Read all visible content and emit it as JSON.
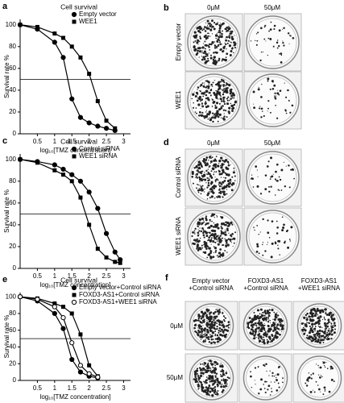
{
  "chart_data": [
    {
      "type": "line",
      "panel": "a",
      "title": "Cell survival",
      "x_label": "log₁₀[TMZ concentration]",
      "y_label": "Survival rate %",
      "x": [
        0,
        0.5,
        1,
        1.25,
        1.5,
        1.75,
        2,
        2.25,
        2.5,
        2.75
      ],
      "series": [
        {
          "name": "Empty vector",
          "color": "#000000",
          "marker": "circle",
          "values": [
            100,
            96,
            84,
            70,
            32,
            15,
            10,
            7,
            5,
            3
          ]
        },
        {
          "name": "WEE1",
          "color": "#000000",
          "marker": "square",
          "values": [
            100,
            98,
            92,
            88,
            80,
            70,
            55,
            30,
            12,
            5
          ]
        }
      ],
      "xlim": [
        0,
        3.2
      ],
      "xticks": [
        0.5,
        1,
        1.5,
        2,
        2.5,
        3
      ],
      "ylim": [
        0,
        105
      ],
      "yticks": [
        0,
        20,
        40,
        60,
        80,
        100
      ],
      "reference_line": 50,
      "grid": false
    },
    {
      "type": "line",
      "panel": "c",
      "title": "Cell survival",
      "x_label": "log₁₀[TMZ concentration]",
      "y_label": "Survival rate %",
      "x": [
        0,
        0.5,
        1,
        1.25,
        1.5,
        1.75,
        2,
        2.25,
        2.5,
        2.75,
        2.9
      ],
      "series": [
        {
          "name": "Control siRNA",
          "color": "#000000",
          "marker": "circle",
          "values": [
            100,
            98,
            95,
            91,
            86,
            80,
            70,
            55,
            32,
            15,
            8
          ]
        },
        {
          "name": "WEE1 siRNA",
          "color": "#000000",
          "marker": "square",
          "values": [
            100,
            97,
            90,
            86,
            80,
            65,
            40,
            18,
            10,
            6,
            5
          ]
        }
      ],
      "xlim": [
        0,
        3.2
      ],
      "xticks": [
        0.5,
        1,
        1.5,
        2,
        2.5,
        3
      ],
      "ylim": [
        0,
        105
      ],
      "yticks": [
        0,
        20,
        40,
        60,
        80,
        100
      ],
      "reference_line": 50,
      "grid": false
    },
    {
      "type": "line",
      "panel": "e",
      "title": "Cell survival",
      "x_label": "log₁₀[TMZ concentration]",
      "y_label": "Survival rate %",
      "x": [
        0,
        0.5,
        1,
        1.25,
        1.5,
        1.75,
        2,
        2.25
      ],
      "series": [
        {
          "name": "Empty vector+Control siRNA",
          "color": "#000000",
          "marker": "circle",
          "values": [
            100,
            95,
            80,
            62,
            25,
            10,
            5,
            3
          ]
        },
        {
          "name": "FOXD3-AS1+Control siRNA",
          "color": "#000000",
          "marker": "square",
          "values": [
            100,
            98,
            92,
            88,
            80,
            55,
            18,
            5
          ]
        },
        {
          "name": "FOXD3-AS1+WEE1 siRNA",
          "color": "#000000",
          "marker": "open-circle",
          "values": [
            100,
            97,
            88,
            75,
            45,
            18,
            8,
            4
          ]
        }
      ],
      "xlim": [
        0,
        3.2
      ],
      "xticks": [
        0.5,
        1,
        1.5,
        2,
        2.5,
        3
      ],
      "ylim": [
        0,
        105
      ],
      "yticks": [
        0,
        20,
        40,
        60,
        80,
        100
      ],
      "reference_line": 50,
      "grid": false
    }
  ],
  "image_panels": [
    {
      "panel": "b",
      "columns": [
        [
          "0μM"
        ],
        [
          "50μM"
        ]
      ],
      "rows": [
        "Empty vector",
        "WEE1"
      ]
    },
    {
      "panel": "d",
      "columns": [
        [
          "0μM"
        ],
        [
          "50μM"
        ]
      ],
      "rows": [
        "Control siRNA",
        "WEE1 siRNA"
      ]
    },
    {
      "panel": "f",
      "columns": [
        [
          "Empty vector",
          "+Control siRNA"
        ],
        [
          "FOXD3-AS1",
          "+Control siRNA"
        ],
        [
          "FOXD3-AS1",
          "+WEE1 siRNA"
        ]
      ],
      "rows": [
        "0μM",
        "50μM"
      ]
    }
  ]
}
